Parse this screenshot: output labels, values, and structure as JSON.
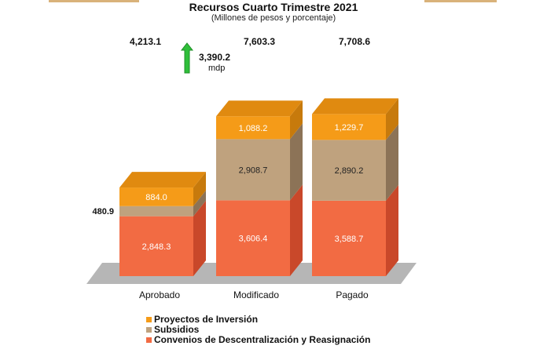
{
  "chart_data": {
    "type": "bar",
    "stacked": true,
    "title": "Recursos Cuarto Trimestre 2021",
    "subtitle": "(Millones de pesos y porcentaje)",
    "categories": [
      "Aprobado",
      "Modificado",
      "Pagado"
    ],
    "totals": [
      "4,213.1",
      "7,603.3",
      "7,708.6"
    ],
    "series": [
      {
        "name": "Convenios de Descentralización y Reasignación",
        "color": "#f26b43",
        "values": [
          2848.3,
          3606.4,
          3588.7
        ],
        "labels": [
          "2,848.3",
          "3,606.4",
          "3,588.7"
        ]
      },
      {
        "name": "Subsidios",
        "color": "#bfa27e",
        "values": [
          480.9,
          2908.7,
          2890.2
        ],
        "labels": [
          "480.9",
          "2,908.7",
          "2,890.2"
        ]
      },
      {
        "name": "Proyectos de Inversión",
        "color": "#f59b18",
        "values": [
          884.0,
          1088.2,
          1229.7
        ],
        "labels": [
          "884.0",
          "1,088.2",
          "1,229.7"
        ]
      }
    ],
    "annotation": {
      "value": "3,390.2",
      "unit": "mdp",
      "arrow": "up",
      "arrow_color": "#2fbf3a"
    }
  }
}
